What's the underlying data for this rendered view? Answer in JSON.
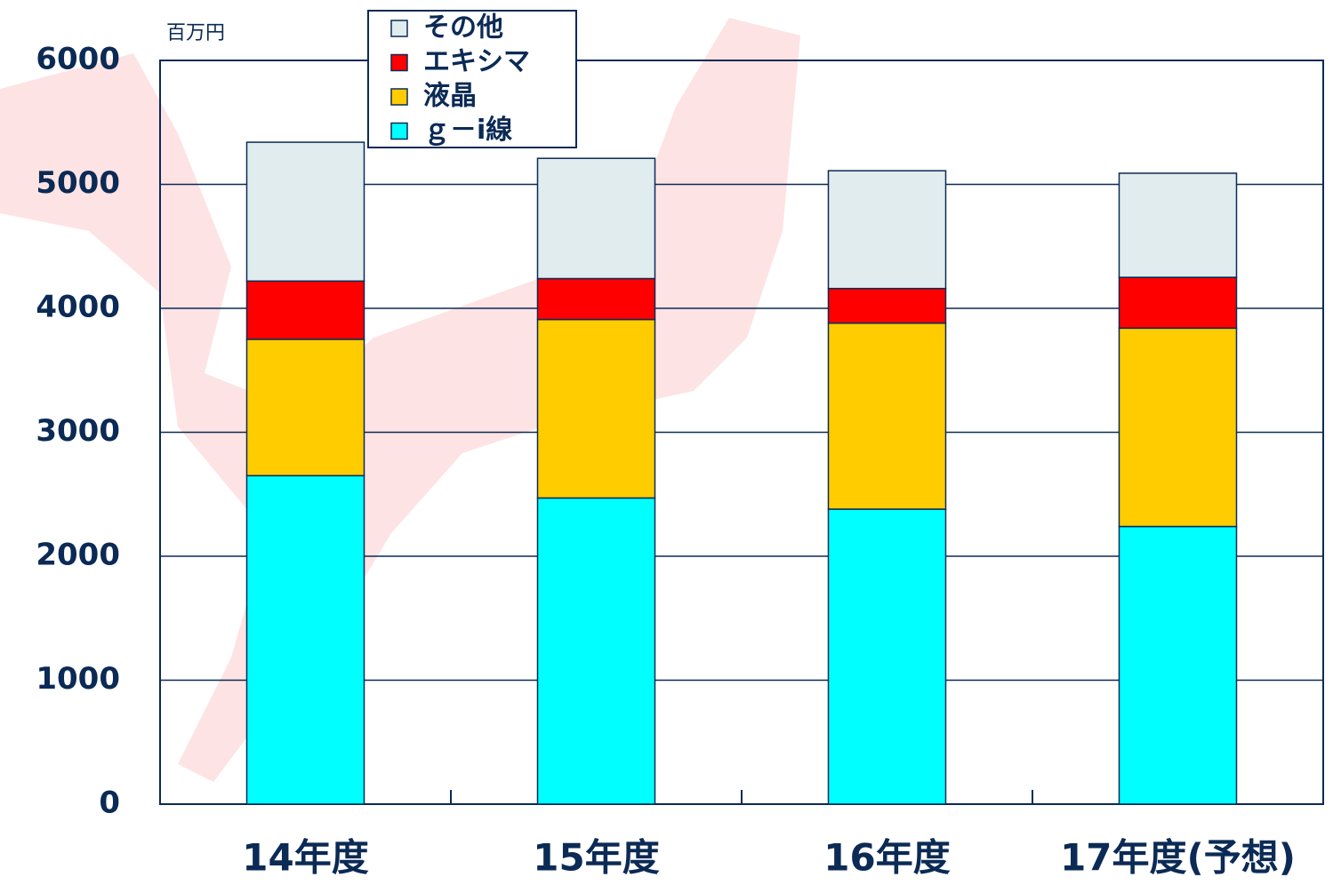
{
  "chart_data": {
    "type": "stacked_bar",
    "unit_label": "百万円",
    "categories": [
      "14年度",
      "15年度",
      "16年度",
      "17年度(予想)"
    ],
    "series": [
      {
        "name": "ｇ－i線",
        "color": "#00ffff",
        "values": [
          2650,
          2470,
          2380,
          2240
        ]
      },
      {
        "name": "液晶",
        "color": "#ffcc00",
        "values": [
          1100,
          1440,
          1500,
          1600
        ]
      },
      {
        "name": "エキシマ",
        "color": "#ff0000",
        "values": [
          470,
          330,
          280,
          410
        ]
      },
      {
        "name": "その他",
        "color": "#e0ecee",
        "values": [
          1120,
          970,
          950,
          840
        ]
      }
    ],
    "ylim": [
      0,
      6000
    ],
    "yticks": [
      0,
      1000,
      2000,
      3000,
      4000,
      5000,
      6000
    ],
    "grid": true
  }
}
